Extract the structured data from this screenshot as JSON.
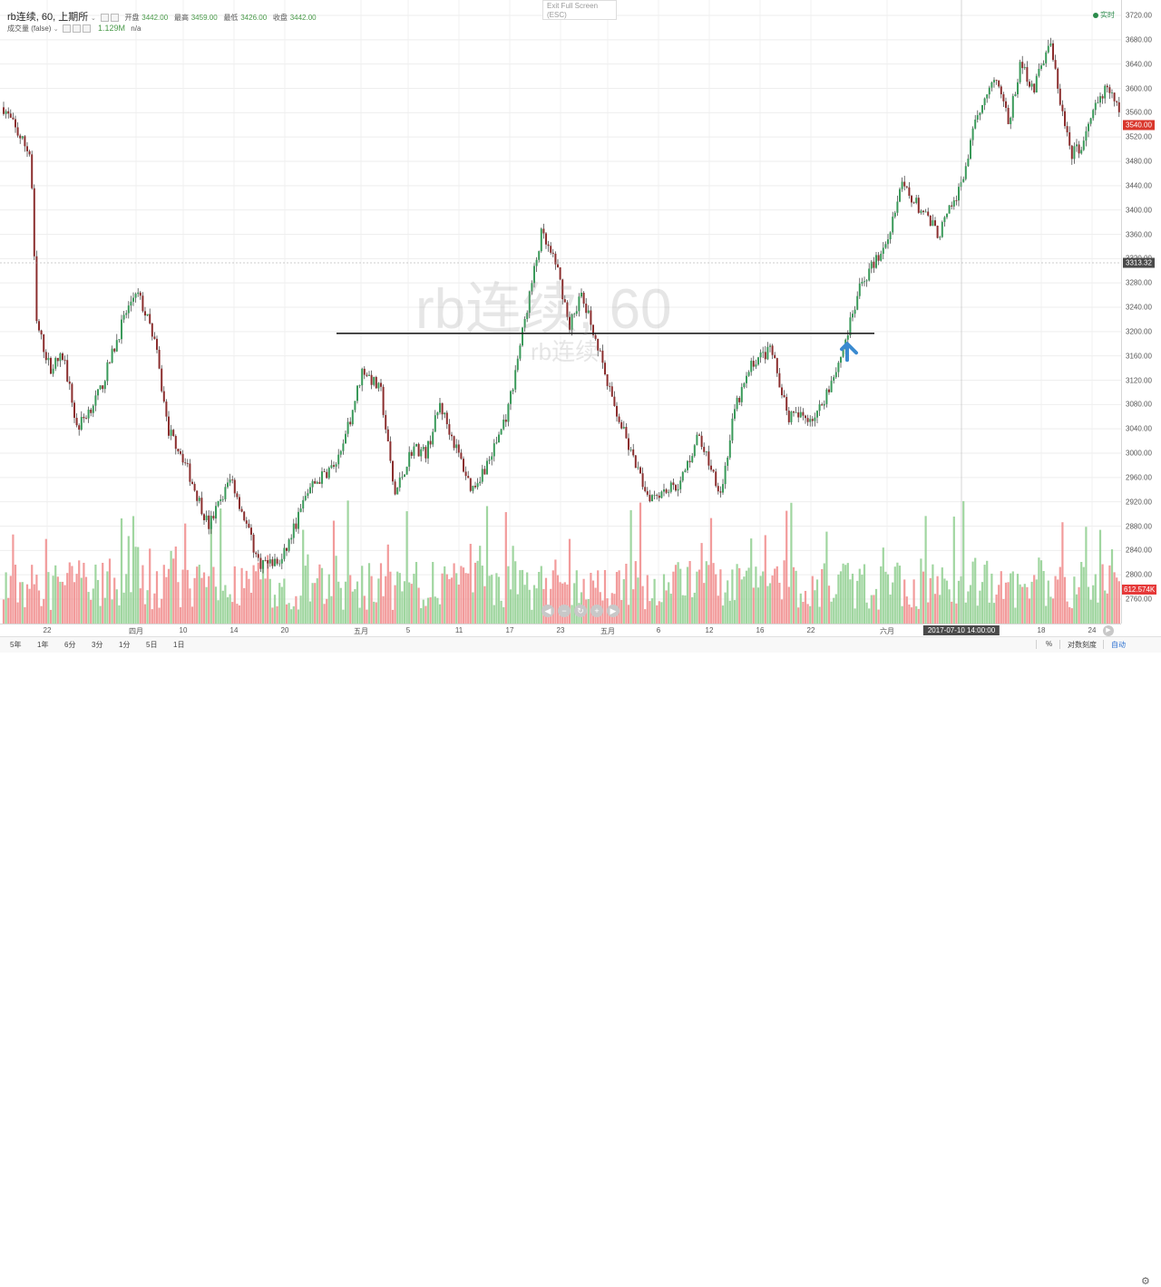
{
  "legend": {
    "symbol": "rb连续, 60, 上期所",
    "open_label": "开盘",
    "open": "3442.00",
    "high_label": "最高",
    "high": "3459.00",
    "low_label": "最低",
    "low": "3426.00",
    "close_label": "收盘",
    "close": "3442.00"
  },
  "volume_legend": {
    "label": "成交量 (false)",
    "value": "1.129M",
    "na": "n/a"
  },
  "exit_fullscreen": {
    "line1": "Exit Full Screen",
    "line2": "(ESC)"
  },
  "realtime_label": "实时",
  "watermark": {
    "main": "rb连续, 60",
    "sub": "rb连续"
  },
  "price_axis": {
    "ticks": [
      "3720.00",
      "3680.00",
      "3640.00",
      "3600.00",
      "3560.00",
      "3520.00",
      "3480.00",
      "3440.00",
      "3400.00",
      "3360.00",
      "3320.00",
      "3280.00",
      "3240.00",
      "3200.00",
      "3160.00",
      "3120.00",
      "3080.00",
      "3040.00",
      "3000.00",
      "2960.00",
      "2920.00",
      "2880.00",
      "2840.00",
      "2800.00",
      "2760.00"
    ],
    "last_price": "3540.00",
    "crosshair_price": "3313.32",
    "volume_tag": "612.574K"
  },
  "time_axis": {
    "labels": [
      "22",
      "四月",
      "10",
      "14",
      "20",
      "五月",
      "5",
      "11",
      "17",
      "23",
      "五月",
      "6",
      "12",
      "16",
      "22",
      "六月",
      "18",
      "24"
    ],
    "crosshair_time": "2017-07-10 14:00:00"
  },
  "toolbar": {
    "ranges": [
      "5年",
      "1年",
      "6分",
      "3分",
      "1分",
      "5日",
      "1日"
    ],
    "percent": "%",
    "log": "对数刻度",
    "auto": "自动"
  },
  "colors": {
    "up": "#3a9a5a",
    "down": "#8b2e2e",
    "vol_up": "#8fcf8f",
    "vol_down": "#f08a8a",
    "arrow": "#3a8ad0"
  },
  "chart_data": {
    "type": "candlestick",
    "title": "rb连续, 60, 上期所",
    "ylabel": "",
    "ylim": [
      2740,
      3730
    ],
    "grid": true,
    "horizontal_line": 3197,
    "arrow_at": 3180,
    "anchors": [
      [
        0,
        3580
      ],
      [
        18,
        3530
      ],
      [
        34,
        3490
      ],
      [
        40,
        3215
      ],
      [
        55,
        3140
      ],
      [
        70,
        3160
      ],
      [
        85,
        3040
      ],
      [
        110,
        3100
      ],
      [
        135,
        3215
      ],
      [
        150,
        3270
      ],
      [
        170,
        3190
      ],
      [
        185,
        3040
      ],
      [
        200,
        3000
      ],
      [
        230,
        2880
      ],
      [
        255,
        2960
      ],
      [
        285,
        2820
      ],
      [
        310,
        2820
      ],
      [
        340,
        2940
      ],
      [
        375,
        2990
      ],
      [
        400,
        3140
      ],
      [
        420,
        3100
      ],
      [
        435,
        2930
      ],
      [
        455,
        3010
      ],
      [
        470,
        3000
      ],
      [
        485,
        3080
      ],
      [
        500,
        3020
      ],
      [
        520,
        2940
      ],
      [
        540,
        2990
      ],
      [
        560,
        3070
      ],
      [
        580,
        3230
      ],
      [
        597,
        3360
      ],
      [
        615,
        3300
      ],
      [
        628,
        3210
      ],
      [
        640,
        3260
      ],
      [
        655,
        3200
      ],
      [
        670,
        3110
      ],
      [
        700,
        2980
      ],
      [
        715,
        2930
      ],
      [
        750,
        2950
      ],
      [
        770,
        3030
      ],
      [
        795,
        2935
      ],
      [
        810,
        3070
      ],
      [
        830,
        3150
      ],
      [
        850,
        3170
      ],
      [
        870,
        3060
      ],
      [
        900,
        3060
      ],
      [
        925,
        3150
      ],
      [
        935,
        3200
      ],
      [
        950,
        3280
      ],
      [
        975,
        3340
      ],
      [
        995,
        3440
      ],
      [
        1020,
        3390
      ],
      [
        1035,
        3360
      ],
      [
        1060,
        3440
      ],
      [
        1070,
        3510
      ],
      [
        1085,
        3590
      ],
      [
        1100,
        3620
      ],
      [
        1112,
        3540
      ],
      [
        1125,
        3640
      ],
      [
        1140,
        3600
      ],
      [
        1157,
        3680
      ],
      [
        1170,
        3570
      ],
      [
        1180,
        3490
      ],
      [
        1195,
        3510
      ],
      [
        1205,
        3560
      ],
      [
        1220,
        3600
      ],
      [
        1235,
        3560
      ]
    ]
  }
}
